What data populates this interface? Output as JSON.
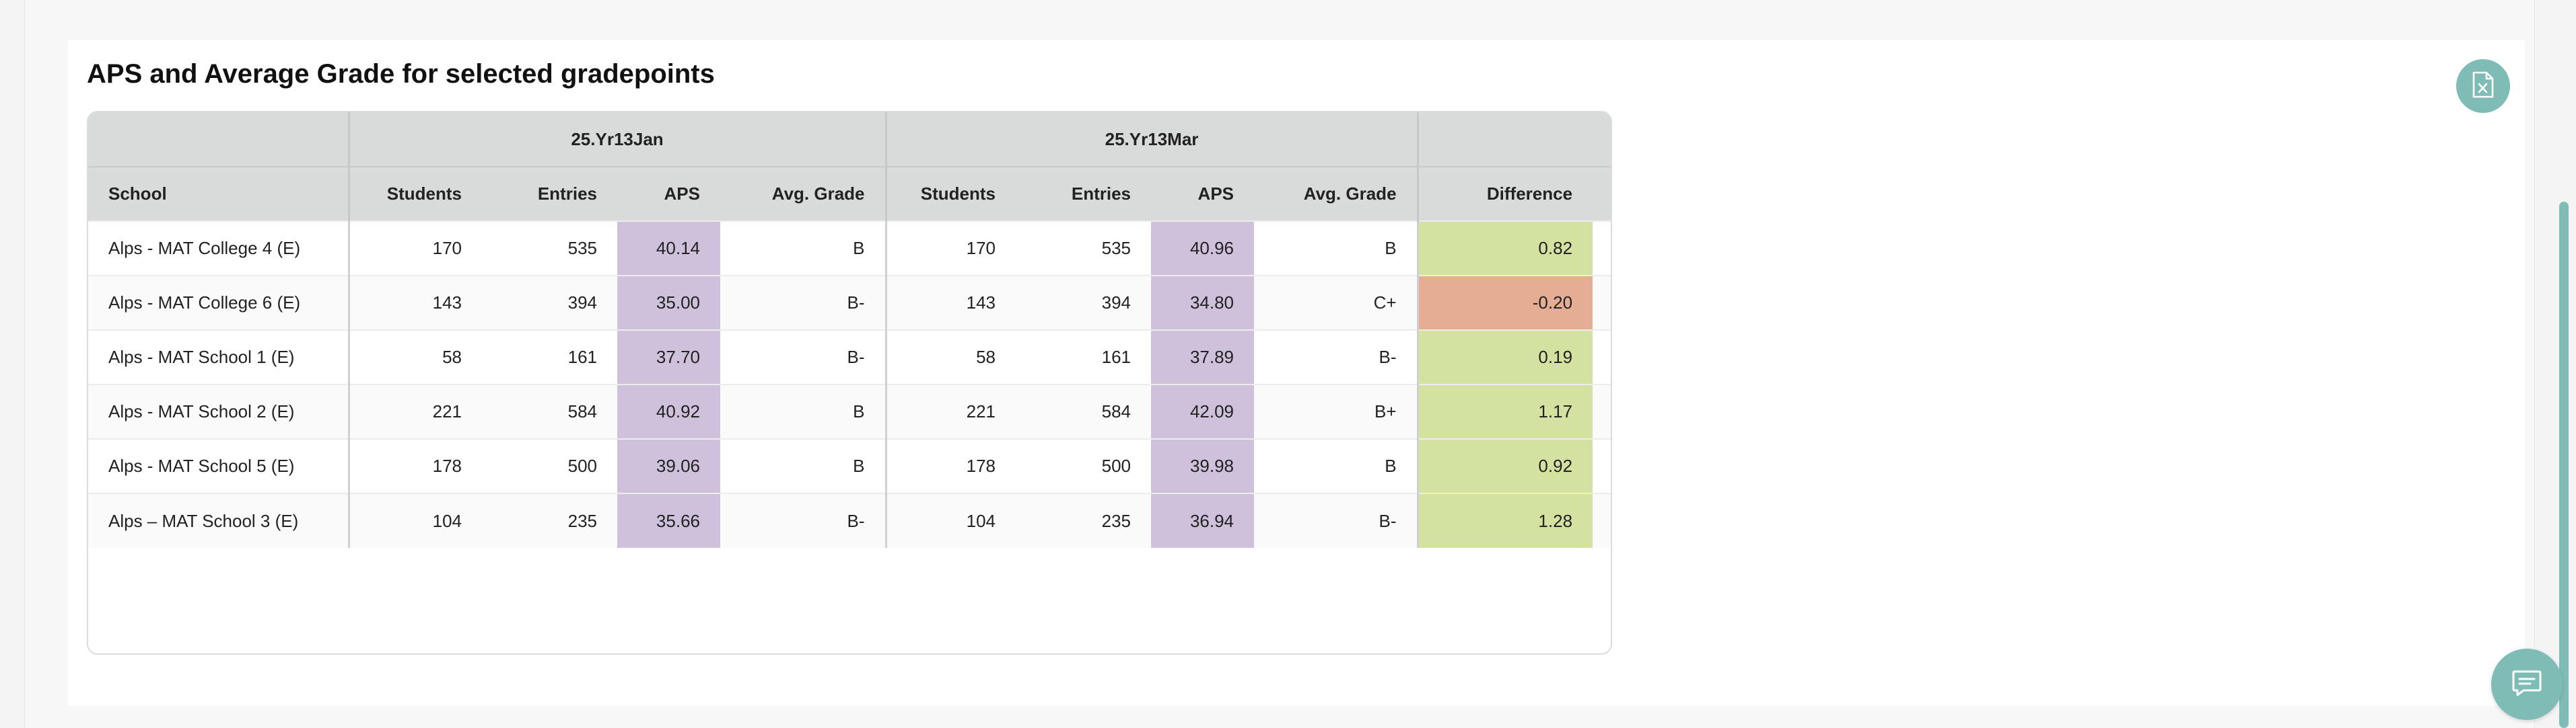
{
  "section_title": "APS and Average Grade for selected gradepoints",
  "export_icon": "excel-export-icon",
  "chat_icon": "chat-icon",
  "colors": {
    "accent": "#7fbcb6",
    "aps_cell": "#cfc0dc",
    "diff_positive": "#d3e2a0",
    "diff_negative": "#e5ad94",
    "header_bg": "#d9dada"
  },
  "table": {
    "group_headers": [
      "25.Yr13Jan",
      "25.Yr13Mar"
    ],
    "columns": [
      "School",
      "Students",
      "Entries",
      "APS",
      "Avg. Grade",
      "Students",
      "Entries",
      "APS",
      "Avg. Grade",
      "Difference"
    ],
    "rows": [
      {
        "school": "Alps - MAT College 4 (E)",
        "jan_students": "170",
        "jan_entries": "535",
        "jan_aps": "40.14",
        "jan_grade": "B",
        "mar_students": "170",
        "mar_entries": "535",
        "mar_aps": "40.96",
        "mar_grade": "B",
        "difference": "0.82",
        "diff_sign": "positive"
      },
      {
        "school": "Alps - MAT College 6 (E)",
        "jan_students": "143",
        "jan_entries": "394",
        "jan_aps": "35.00",
        "jan_grade": "B-",
        "mar_students": "143",
        "mar_entries": "394",
        "mar_aps": "34.80",
        "mar_grade": "C+",
        "difference": "-0.20",
        "diff_sign": "negative"
      },
      {
        "school": "Alps - MAT School 1 (E)",
        "jan_students": "58",
        "jan_entries": "161",
        "jan_aps": "37.70",
        "jan_grade": "B-",
        "mar_students": "58",
        "mar_entries": "161",
        "mar_aps": "37.89",
        "mar_grade": "B-",
        "difference": "0.19",
        "diff_sign": "positive"
      },
      {
        "school": "Alps - MAT School 2 (E)",
        "jan_students": "221",
        "jan_entries": "584",
        "jan_aps": "40.92",
        "jan_grade": "B",
        "mar_students": "221",
        "mar_entries": "584",
        "mar_aps": "42.09",
        "mar_grade": "B+",
        "difference": "1.17",
        "diff_sign": "positive"
      },
      {
        "school": "Alps - MAT School 5 (E)",
        "jan_students": "178",
        "jan_entries": "500",
        "jan_aps": "39.06",
        "jan_grade": "B",
        "mar_students": "178",
        "mar_entries": "500",
        "mar_aps": "39.98",
        "mar_grade": "B",
        "difference": "0.92",
        "diff_sign": "positive"
      },
      {
        "school": "Alps – MAT School 3 (E)",
        "jan_students": "104",
        "jan_entries": "235",
        "jan_aps": "35.66",
        "jan_grade": "B-",
        "mar_students": "104",
        "mar_entries": "235",
        "mar_aps": "36.94",
        "mar_grade": "B-",
        "difference": "1.28",
        "diff_sign": "positive"
      }
    ]
  }
}
